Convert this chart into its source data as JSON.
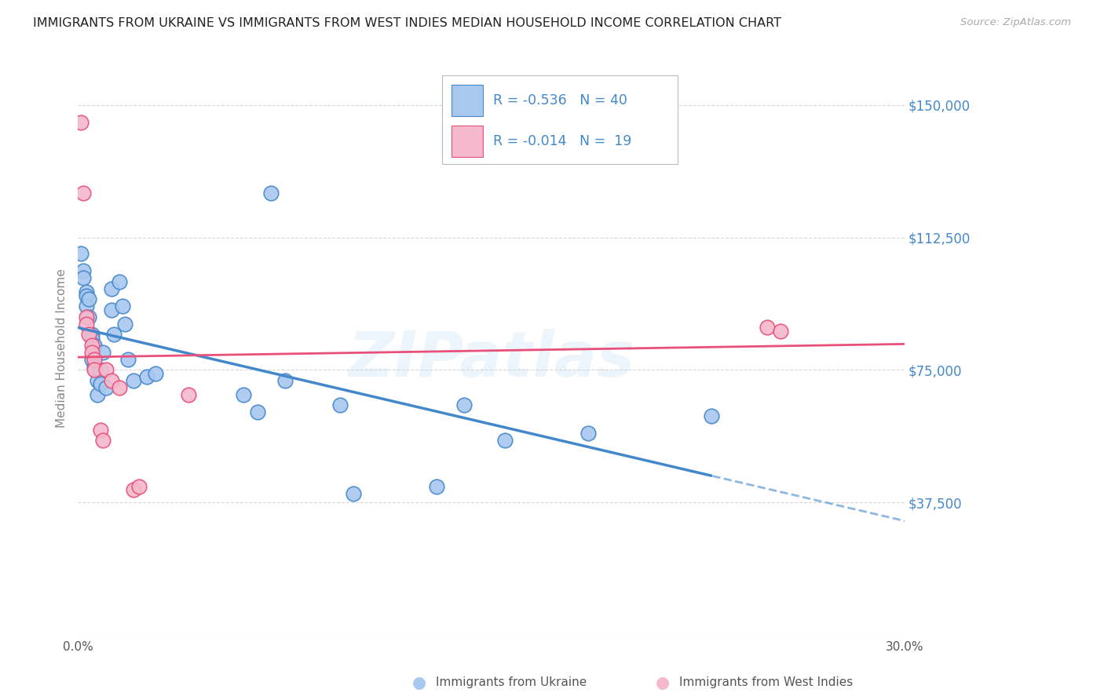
{
  "title": "IMMIGRANTS FROM UKRAINE VS IMMIGRANTS FROM WEST INDIES MEDIAN HOUSEHOLD INCOME CORRELATION CHART",
  "source": "Source: ZipAtlas.com",
  "ylabel": "Median Household Income",
  "yticks": [
    0,
    37500,
    75000,
    112500,
    150000
  ],
  "ytick_labels": [
    "",
    "$37,500",
    "$75,000",
    "$112,500",
    "$150,000"
  ],
  "xlim": [
    0.0,
    0.3
  ],
  "ylim": [
    0,
    162500
  ],
  "legend_label1": "R = -0.536   N = 40",
  "legend_label2": "R = -0.014   N =  19",
  "legend_series1": "Immigrants from Ukraine",
  "legend_series2": "Immigrants from West Indies",
  "color_ukraine": "#a8c8f0",
  "color_west_indies": "#f5b8cc",
  "color_ukraine_line": "#4488cc",
  "color_west_indies_line": "#e8507a",
  "watermark": "ZIPatlas",
  "ukraine_x": [
    0.001,
    0.002,
    0.002,
    0.003,
    0.003,
    0.003,
    0.004,
    0.004,
    0.005,
    0.005,
    0.005,
    0.006,
    0.006,
    0.007,
    0.007,
    0.008,
    0.008,
    0.009,
    0.01,
    0.012,
    0.012,
    0.013,
    0.015,
    0.016,
    0.017,
    0.018,
    0.02,
    0.025,
    0.028,
    0.06,
    0.065,
    0.07,
    0.095,
    0.1,
    0.13,
    0.14,
    0.155,
    0.185,
    0.23,
    0.075
  ],
  "ukraine_y": [
    108000,
    103000,
    101000,
    97000,
    96000,
    93000,
    95000,
    90000,
    85000,
    84000,
    78000,
    82000,
    76000,
    68000,
    72000,
    75000,
    71000,
    80000,
    70000,
    98000,
    92000,
    85000,
    100000,
    93000,
    88000,
    78000,
    72000,
    73000,
    74000,
    68000,
    63000,
    125000,
    65000,
    40000,
    42000,
    65000,
    55000,
    57000,
    62000,
    72000
  ],
  "west_indies_x": [
    0.001,
    0.002,
    0.003,
    0.003,
    0.004,
    0.005,
    0.005,
    0.006,
    0.006,
    0.008,
    0.009,
    0.01,
    0.012,
    0.015,
    0.02,
    0.022,
    0.04,
    0.25,
    0.255
  ],
  "west_indies_y": [
    145000,
    125000,
    90000,
    88000,
    85000,
    82000,
    80000,
    78000,
    75000,
    58000,
    55000,
    75000,
    72000,
    70000,
    41000,
    42000,
    68000,
    87000,
    86000
  ],
  "background_color": "#ffffff",
  "grid_color": "#cccccc",
  "title_color": "#333333",
  "axis_label_color": "#888888",
  "right_tick_color": "#4488cc",
  "legend_text_color": "#4488cc"
}
